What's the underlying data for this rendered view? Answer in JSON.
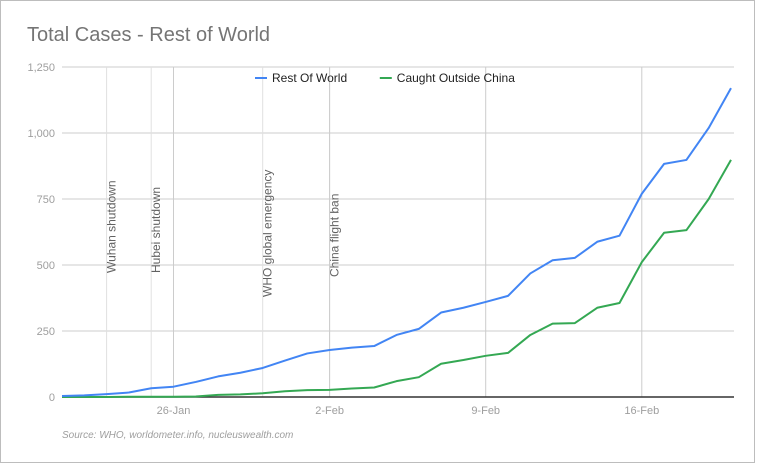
{
  "chart_data": {
    "type": "line",
    "title": "Total Cases - Rest of World",
    "source": "Source: WHO, worldometer.info, nucleuswealth.com",
    "x": [
      "21-Jan",
      "22-Jan",
      "23-Jan",
      "24-Jan",
      "25-Jan",
      "26-Jan",
      "27-Jan",
      "28-Jan",
      "29-Jan",
      "30-Jan",
      "31-Jan",
      "1-Feb",
      "2-Feb",
      "3-Feb",
      "4-Feb",
      "5-Feb",
      "6-Feb",
      "7-Feb",
      "8-Feb",
      "9-Feb",
      "10-Feb",
      "11-Feb",
      "12-Feb",
      "13-Feb",
      "14-Feb",
      "15-Feb",
      "16-Feb",
      "17-Feb",
      "18-Feb",
      "19-Feb",
      "20-Feb"
    ],
    "x_ticks": [
      "26-Jan",
      "2-Feb",
      "9-Feb",
      "16-Feb"
    ],
    "ylim": [
      0,
      1250
    ],
    "y_ticks": [
      0,
      250,
      500,
      750,
      1000,
      1250
    ],
    "y_tick_labels": [
      "0",
      "250",
      "500",
      "750",
      "1,000",
      "1,250"
    ],
    "grid": true,
    "legend_position": "top",
    "series": [
      {
        "name": "Rest Of World",
        "color": "#4285f4",
        "values": [
          4,
          6,
          11,
          17,
          33,
          39,
          57,
          78,
          92,
          110,
          138,
          165,
          178,
          187,
          193,
          235,
          258,
          320,
          338,
          360,
          383,
          468,
          518,
          527,
          588,
          611,
          770,
          883,
          898,
          1019,
          1170
        ]
      },
      {
        "name": "Caught Outside China",
        "color": "#34a853",
        "values": [
          0,
          0,
          0,
          1,
          1,
          1,
          2,
          8,
          10,
          14,
          22,
          26,
          27,
          32,
          36,
          60,
          75,
          126,
          140,
          156,
          167,
          235,
          278,
          280,
          338,
          356,
          511,
          622,
          632,
          750,
          898
        ]
      }
    ],
    "annotations": [
      {
        "x": "23-Jan",
        "label": "Wuhan shutdown"
      },
      {
        "x": "25-Jan",
        "label": "Hubei shutdown"
      },
      {
        "x": "30-Jan",
        "label": "WHO global emergency"
      },
      {
        "x": "2-Feb",
        "label": "China flight ban"
      }
    ]
  }
}
